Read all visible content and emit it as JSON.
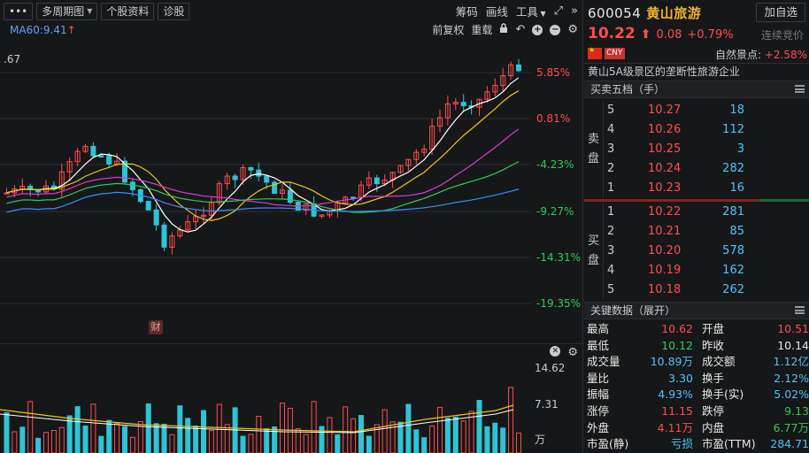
{
  "toolbar": {
    "dots_label": "•••",
    "period_label": "多周期图",
    "profile_label": "个股资料",
    "diagnose_label": "诊股",
    "chips_label": "筹码",
    "drawline_label": "画线",
    "tools_label": "工具"
  },
  "indicator": {
    "ma60_label": "MA60:9.41",
    "ma60_arrow": "↑",
    "fq_label": "前复权",
    "lock_label": "重载"
  },
  "chart": {
    "top_left_value": ".67",
    "y_labels": [
      "5.85%",
      "0.81%",
      "-4.23%",
      "-9.27%",
      "-14.31%",
      "-19.35%"
    ],
    "event_badge": "财",
    "vol_labels": [
      "14.62",
      "7.31",
      "万"
    ]
  },
  "quote": {
    "code": "600054",
    "name": "黄山旅游",
    "add_watch": "加自选",
    "price": "10.22",
    "price_arrow": "⬆",
    "change": "0.08",
    "change_pct": "+0.79%",
    "auction": "连续竞价",
    "currency": "CNY",
    "zr_label": "自然景点:",
    "zr_value": "+2.58%",
    "description": "黄山5A级景区的垄断性旅游企业"
  },
  "orderbook": {
    "title": "买卖五档（手）",
    "sell_label": [
      "卖",
      "盘"
    ],
    "buy_label": [
      "买",
      "盘"
    ],
    "asks": [
      {
        "level": "5",
        "price": "10.27",
        "vol": "18"
      },
      {
        "level": "4",
        "price": "10.26",
        "vol": "112"
      },
      {
        "level": "3",
        "price": "10.25",
        "vol": "3"
      },
      {
        "level": "2",
        "price": "10.24",
        "vol": "282"
      },
      {
        "level": "1",
        "price": "10.23",
        "vol": "16"
      }
    ],
    "bids": [
      {
        "level": "1",
        "price": "10.22",
        "vol": "281"
      },
      {
        "level": "2",
        "price": "10.21",
        "vol": "85"
      },
      {
        "level": "3",
        "price": "10.20",
        "vol": "578"
      },
      {
        "level": "4",
        "price": "10.19",
        "vol": "162"
      },
      {
        "level": "5",
        "price": "10.18",
        "vol": "262"
      }
    ]
  },
  "keydata": {
    "title": "关键数据（展开）",
    "rows": [
      {
        "l1": "最高",
        "v1": "10.62",
        "c1": "red",
        "l2": "开盘",
        "v2": "10.51",
        "c2": "red"
      },
      {
        "l1": "最低",
        "v1": "10.12",
        "c1": "green",
        "l2": "昨收",
        "v2": "10.14",
        "c2": "white"
      },
      {
        "l1": "成交量",
        "v1": "10.89万",
        "c1": "blue",
        "l2": "成交额",
        "v2": "1.12亿",
        "c2": "blue"
      },
      {
        "l1": "量比",
        "v1": "3.30",
        "c1": "blue",
        "l2": "换手",
        "v2": "2.12%",
        "c2": "blue"
      },
      {
        "l1": "振幅",
        "v1": "4.93%",
        "c1": "blue",
        "l2": "换手(实)",
        "v2": "5.02%",
        "c2": "blue"
      },
      {
        "l1": "涨停",
        "v1": "11.15",
        "c1": "red",
        "l2": "跌停",
        "v2": "9.13",
        "c2": "green"
      },
      {
        "l1": "外盘",
        "v1": "4.11万",
        "c1": "red",
        "l2": "内盘",
        "v2": "6.77万",
        "c2": "green"
      },
      {
        "l1": "市盈(静)",
        "v1": "亏损",
        "c1": "blue",
        "l2": "市盈(TTM)",
        "v2": "284.71",
        "c2": "blue"
      }
    ]
  },
  "colors": {
    "up": "#ff4d4d",
    "down": "#2ecc55",
    "bg": "#161719",
    "accent": "#f0b429",
    "volume": "#4fc3f7"
  }
}
